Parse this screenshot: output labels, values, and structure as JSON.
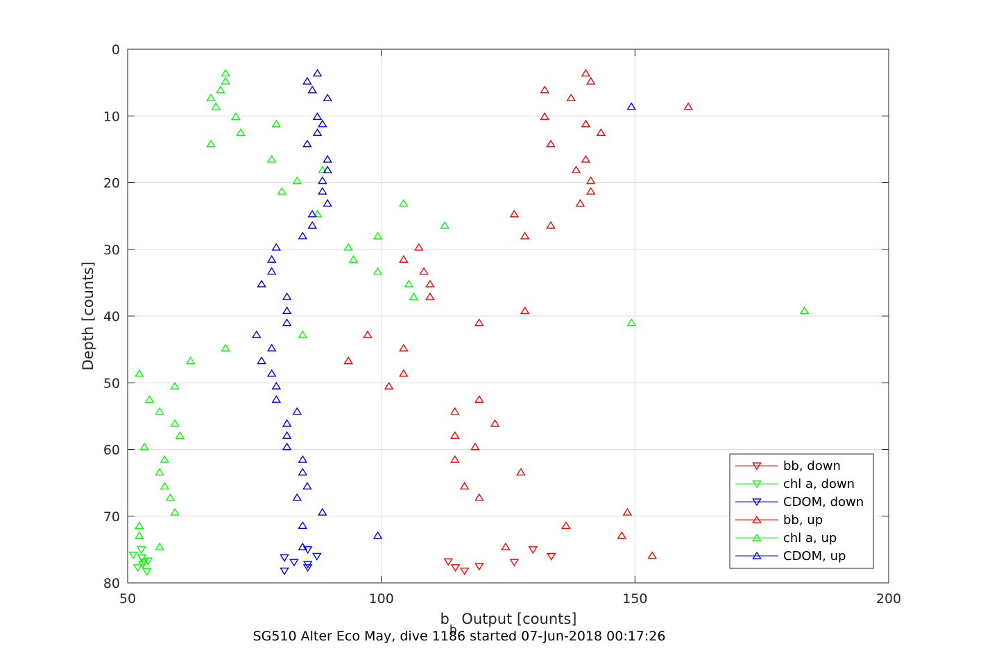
{
  "chart_data": {
    "type": "scatter",
    "xlabel_main": "b",
    "xlabel_sub": "b",
    "xlabel_rest": " Output [counts]",
    "ylabel": "Depth [counts]",
    "caption": "SG510 Alter Eco May, dive 1186 started 07-Jun-2018 00:17:26",
    "xlim": [
      50,
      200
    ],
    "ylim": [
      0,
      80
    ],
    "y_reversed": true,
    "grid": true,
    "x_ticks": [
      "50",
      "100",
      "150",
      "200"
    ],
    "y_ticks": [
      "0",
      "10",
      "20",
      "30",
      "40",
      "50",
      "60",
      "70",
      "80"
    ],
    "legend_position": "bottom-right",
    "series": [
      {
        "name": "bb, down",
        "color": "#ff0000",
        "marker": "triangle-down",
        "points": [
          [
            113.2,
            76.8
          ],
          [
            114.6,
            77.7
          ],
          [
            116.4,
            78.2
          ],
          [
            119.3,
            77.5
          ],
          [
            126.2,
            76.9
          ],
          [
            129.9,
            75.0
          ],
          [
            133.5,
            76.0
          ]
        ]
      },
      {
        "name": "chl a, down",
        "color": "#00ff00",
        "marker": "triangle-down",
        "points": [
          [
            51.1,
            75.8
          ],
          [
            52.0,
            77.7
          ],
          [
            52.7,
            75.0
          ],
          [
            52.8,
            76.2
          ],
          [
            53.0,
            77.2
          ],
          [
            53.2,
            76.8
          ],
          [
            53.8,
            78.3
          ],
          [
            54.0,
            76.7
          ]
        ]
      },
      {
        "name": "CDOM, down",
        "color": "#0000ff",
        "marker": "triangle-down",
        "points": [
          [
            80.9,
            76.2
          ],
          [
            80.9,
            78.2
          ],
          [
            82.8,
            76.9
          ],
          [
            85.5,
            75.0
          ],
          [
            85.5,
            77.2
          ],
          [
            85.5,
            77.7
          ],
          [
            87.3,
            76.0
          ]
        ]
      },
      {
        "name": "bb, up",
        "color": "#ff0000",
        "marker": "triangle-up",
        "points": [
          [
            140.3,
            3.6
          ],
          [
            141.3,
            4.8
          ],
          [
            132.2,
            6.1
          ],
          [
            137.4,
            7.3
          ],
          [
            160.5,
            8.6
          ],
          [
            132.2,
            10.1
          ],
          [
            140.3,
            11.2
          ],
          [
            143.3,
            12.5
          ],
          [
            133.4,
            14.2
          ],
          [
            140.3,
            16.5
          ],
          [
            138.4,
            18.1
          ],
          [
            141.3,
            19.7
          ],
          [
            141.3,
            21.3
          ],
          [
            139.2,
            23.1
          ],
          [
            126.2,
            24.7
          ],
          [
            133.4,
            26.4
          ],
          [
            128.3,
            28.0
          ],
          [
            107.4,
            29.7
          ],
          [
            104.4,
            31.5
          ],
          [
            108.4,
            33.3
          ],
          [
            109.6,
            35.2
          ],
          [
            109.6,
            37.1
          ],
          [
            128.3,
            39.2
          ],
          [
            119.3,
            41.0
          ],
          [
            97.3,
            42.8
          ],
          [
            104.4,
            44.8
          ],
          [
            93.5,
            46.7
          ],
          [
            104.4,
            48.6
          ],
          [
            101.5,
            50.5
          ],
          [
            119.3,
            52.5
          ],
          [
            114.5,
            54.3
          ],
          [
            122.4,
            56.1
          ],
          [
            114.5,
            57.9
          ],
          [
            118.5,
            59.6
          ],
          [
            114.5,
            61.5
          ],
          [
            127.5,
            63.4
          ],
          [
            116.4,
            65.5
          ],
          [
            119.3,
            67.2
          ],
          [
            148.5,
            69.4
          ],
          [
            136.4,
            71.4
          ],
          [
            147.4,
            72.9
          ],
          [
            124.5,
            74.6
          ],
          [
            153.4,
            75.9
          ]
        ]
      },
      {
        "name": "chl a, up",
        "color": "#00ff00",
        "marker": "triangle-up",
        "points": [
          [
            69.3,
            3.6
          ],
          [
            69.3,
            4.8
          ],
          [
            68.3,
            6.1
          ],
          [
            66.4,
            7.3
          ],
          [
            67.4,
            8.6
          ],
          [
            71.3,
            10.1
          ],
          [
            79.3,
            11.2
          ],
          [
            72.3,
            12.5
          ],
          [
            66.4,
            14.2
          ],
          [
            78.4,
            16.5
          ],
          [
            88.4,
            18.1
          ],
          [
            83.4,
            19.7
          ],
          [
            80.4,
            21.3
          ],
          [
            104.4,
            23.1
          ],
          [
            87.4,
            24.7
          ],
          [
            112.5,
            26.4
          ],
          [
            99.3,
            28.0
          ],
          [
            93.5,
            29.7
          ],
          [
            94.5,
            31.5
          ],
          [
            99.3,
            33.3
          ],
          [
            105.4,
            35.2
          ],
          [
            106.4,
            37.1
          ],
          [
            183.4,
            39.2
          ],
          [
            149.3,
            41.0
          ],
          [
            84.5,
            42.8
          ],
          [
            69.3,
            44.8
          ],
          [
            62.4,
            46.7
          ],
          [
            52.3,
            48.6
          ],
          [
            59.3,
            50.5
          ],
          [
            54.3,
            52.5
          ],
          [
            56.3,
            54.3
          ],
          [
            59.3,
            56.1
          ],
          [
            60.3,
            57.9
          ],
          [
            53.3,
            59.6
          ],
          [
            57.3,
            61.5
          ],
          [
            56.3,
            63.4
          ],
          [
            57.3,
            65.5
          ],
          [
            58.4,
            67.2
          ],
          [
            59.3,
            69.4
          ],
          [
            52.3,
            71.4
          ],
          [
            52.3,
            72.9
          ],
          [
            56.3,
            74.6
          ]
        ]
      },
      {
        "name": "CDOM, up",
        "color": "#0000ff",
        "marker": "triangle-up",
        "points": [
          [
            87.4,
            3.6
          ],
          [
            85.4,
            4.8
          ],
          [
            86.4,
            6.1
          ],
          [
            89.4,
            7.3
          ],
          [
            149.3,
            8.6
          ],
          [
            87.4,
            10.1
          ],
          [
            88.4,
            11.2
          ],
          [
            87.4,
            12.5
          ],
          [
            85.4,
            14.2
          ],
          [
            89.4,
            16.5
          ],
          [
            89.4,
            18.1
          ],
          [
            88.4,
            19.7
          ],
          [
            88.4,
            21.3
          ],
          [
            89.4,
            23.1
          ],
          [
            86.4,
            24.7
          ],
          [
            86.4,
            26.4
          ],
          [
            84.5,
            28.0
          ],
          [
            79.3,
            29.7
          ],
          [
            78.4,
            31.5
          ],
          [
            78.4,
            33.3
          ],
          [
            76.4,
            35.2
          ],
          [
            81.4,
            37.1
          ],
          [
            81.4,
            39.2
          ],
          [
            81.4,
            41.0
          ],
          [
            75.4,
            42.8
          ],
          [
            78.4,
            44.8
          ],
          [
            76.4,
            46.7
          ],
          [
            78.4,
            48.6
          ],
          [
            79.3,
            50.5
          ],
          [
            79.3,
            52.5
          ],
          [
            83.4,
            54.3
          ],
          [
            81.4,
            56.1
          ],
          [
            81.4,
            57.9
          ],
          [
            81.4,
            59.6
          ],
          [
            84.5,
            61.5
          ],
          [
            84.5,
            63.4
          ],
          [
            85.4,
            65.5
          ],
          [
            83.4,
            67.2
          ],
          [
            88.4,
            69.4
          ],
          [
            84.5,
            71.4
          ],
          [
            99.3,
            72.9
          ],
          [
            84.5,
            74.6
          ]
        ]
      }
    ]
  }
}
